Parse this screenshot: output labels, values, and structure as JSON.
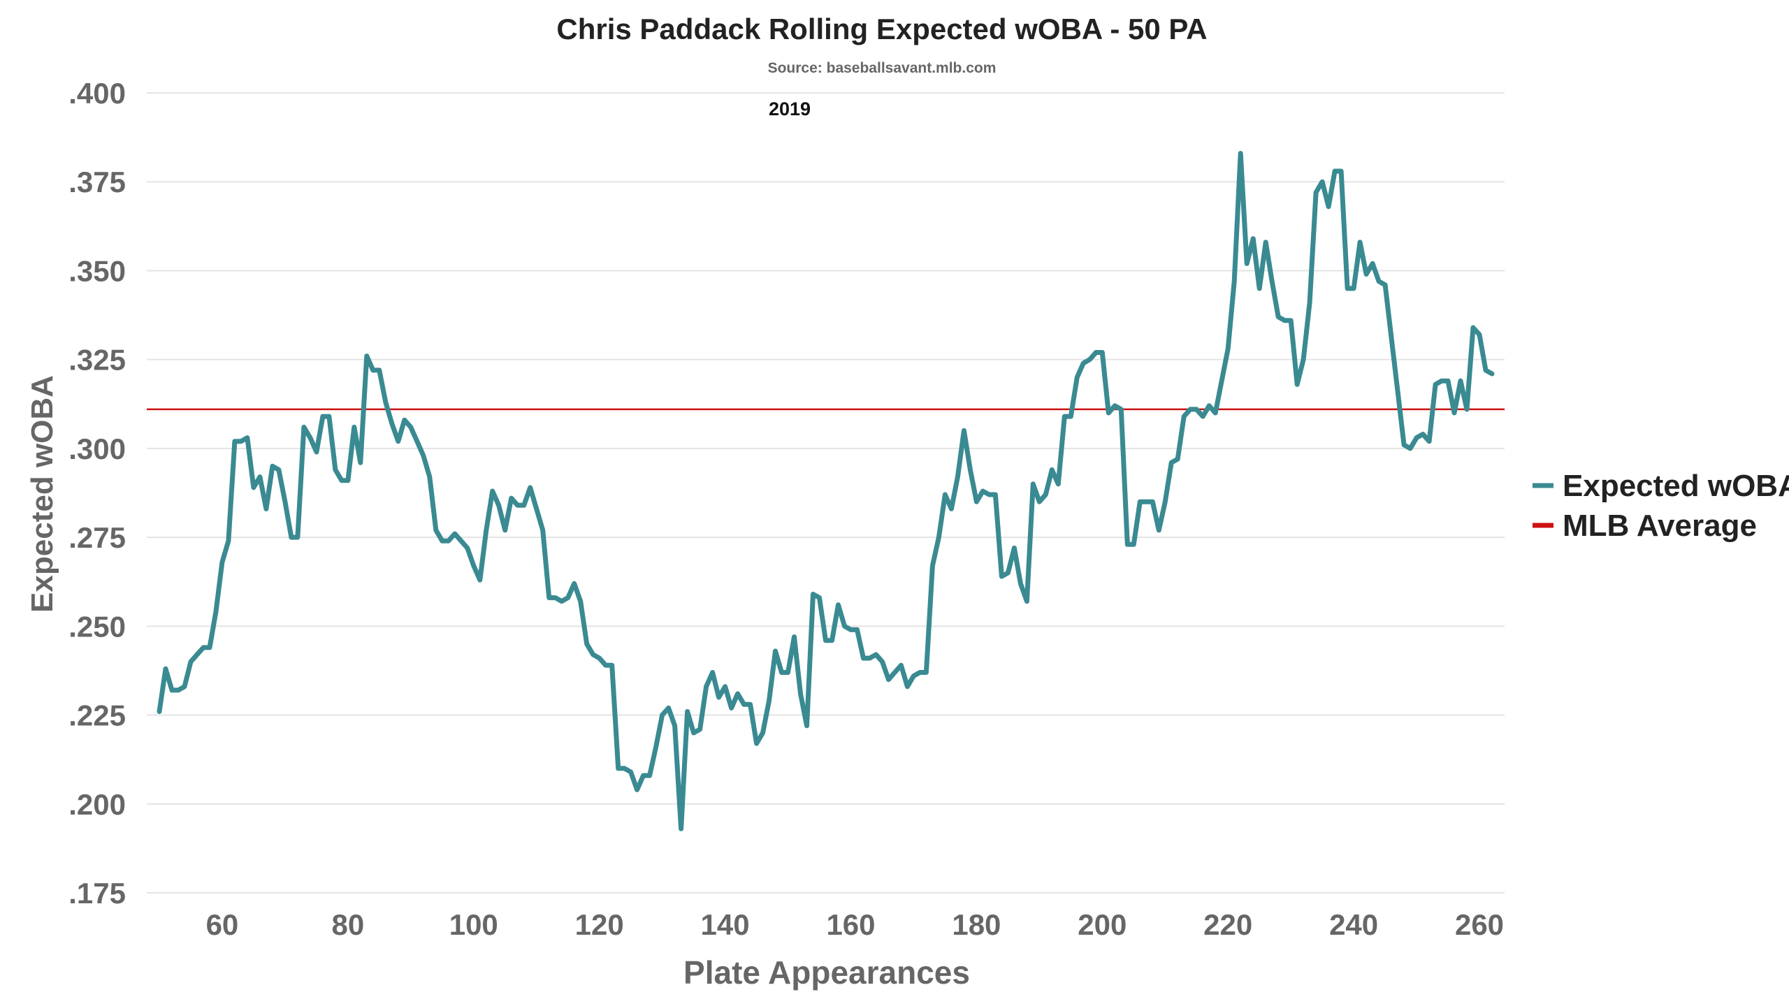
{
  "chart_data": {
    "type": "line",
    "title": "Chris Paddack Rolling Expected wOBA - 50 PA",
    "subtitle": "Source: baseballsavant.mlb.com",
    "annotation": "2019",
    "xlabel": "Plate Appearances",
    "ylabel": "Expected wOBA",
    "xlim": [
      48,
      264
    ],
    "ylim": [
      0.175,
      0.4
    ],
    "x_ticks": [
      60,
      80,
      100,
      120,
      140,
      160,
      180,
      200,
      220,
      240,
      260
    ],
    "x_tick_labels": [
      "60",
      "80",
      "100",
      "120",
      "140",
      "160",
      "180",
      "200",
      "220",
      "240",
      "260"
    ],
    "y_ticks": [
      0.175,
      0.2,
      0.225,
      0.25,
      0.275,
      0.3,
      0.325,
      0.35,
      0.375,
      0.4
    ],
    "y_tick_labels": [
      ".175",
      ".200",
      ".225",
      ".250",
      ".275",
      ".300",
      ".325",
      ".350",
      ".375",
      ".400"
    ],
    "grid": "horizontal",
    "legend_position": "right",
    "colors": {
      "expected_woba": "#3a8a92",
      "mlb_average": "#cc1111",
      "grid": "#e3e3e3"
    },
    "series": [
      {
        "name": "Expected wOBA",
        "x": [
          50,
          51,
          52,
          53,
          54,
          55,
          56,
          57,
          58,
          59,
          60,
          61,
          62,
          63,
          64,
          65,
          66,
          67,
          68,
          69,
          70,
          71,
          72,
          73,
          74,
          75,
          76,
          77,
          78,
          79,
          80,
          81,
          82,
          83,
          84,
          85,
          86,
          87,
          88,
          89,
          90,
          91,
          92,
          93,
          94,
          95,
          96,
          97,
          98,
          99,
          100,
          101,
          102,
          103,
          104,
          105,
          106,
          107,
          108,
          109,
          110,
          111,
          112,
          113,
          114,
          115,
          116,
          117,
          118,
          119,
          120,
          121,
          122,
          123,
          124,
          125,
          126,
          127,
          128,
          129,
          130,
          131,
          132,
          133,
          134,
          135,
          136,
          137,
          138,
          139,
          140,
          141,
          142,
          143,
          144,
          145,
          146,
          147,
          148,
          149,
          150,
          151,
          152,
          153,
          154,
          155,
          156,
          157,
          158,
          159,
          160,
          161,
          162,
          163,
          164,
          165,
          166,
          167,
          168,
          169,
          170,
          171,
          172,
          173,
          174,
          175,
          176,
          177,
          178,
          179,
          180,
          181,
          182,
          183,
          184,
          185,
          186,
          187,
          188,
          189,
          190,
          191,
          192,
          193,
          194,
          195,
          196,
          197,
          198,
          199,
          200,
          201,
          202,
          203,
          204,
          205,
          206,
          207,
          208,
          209,
          210,
          211,
          212,
          213,
          214,
          215,
          216,
          217,
          218,
          219,
          220,
          221,
          222,
          223,
          224,
          225,
          226,
          227,
          228,
          229,
          230,
          231,
          232,
          233,
          234,
          235,
          236,
          237,
          238,
          239,
          240,
          241,
          242,
          243,
          244,
          245,
          246,
          247,
          248,
          249,
          250,
          251,
          252,
          253,
          254,
          255,
          256,
          257,
          258,
          259,
          260,
          261,
          262
        ],
        "values": [
          0.226,
          0.238,
          0.232,
          0.232,
          0.233,
          0.24,
          0.242,
          0.244,
          0.244,
          0.254,
          0.268,
          0.274,
          0.302,
          0.302,
          0.303,
          0.289,
          0.292,
          0.283,
          0.295,
          0.294,
          0.285,
          0.275,
          0.275,
          0.306,
          0.303,
          0.299,
          0.309,
          0.309,
          0.294,
          0.291,
          0.291,
          0.306,
          0.296,
          0.326,
          0.322,
          0.322,
          0.313,
          0.307,
          0.302,
          0.308,
          0.306,
          0.302,
          0.298,
          0.292,
          0.277,
          0.274,
          0.274,
          0.276,
          0.274,
          0.272,
          0.267,
          0.263,
          0.277,
          0.288,
          0.284,
          0.277,
          0.286,
          0.284,
          0.284,
          0.289,
          0.283,
          0.277,
          0.258,
          0.258,
          0.257,
          0.258,
          0.262,
          0.257,
          0.245,
          0.242,
          0.241,
          0.239,
          0.239,
          0.21,
          0.21,
          0.209,
          0.204,
          0.208,
          0.208,
          0.216,
          0.225,
          0.227,
          0.222,
          0.193,
          0.226,
          0.22,
          0.221,
          0.233,
          0.237,
          0.23,
          0.233,
          0.227,
          0.231,
          0.228,
          0.228,
          0.217,
          0.22,
          0.229,
          0.243,
          0.237,
          0.237,
          0.247,
          0.231,
          0.222,
          0.259,
          0.258,
          0.246,
          0.246,
          0.256,
          0.25,
          0.249,
          0.249,
          0.241,
          0.241,
          0.242,
          0.24,
          0.235,
          0.237,
          0.239,
          0.233,
          0.236,
          0.237,
          0.237,
          0.267,
          0.275,
          0.287,
          0.283,
          0.292,
          0.305,
          0.294,
          0.285,
          0.288,
          0.287,
          0.287,
          0.264,
          0.265,
          0.272,
          0.262,
          0.257,
          0.29,
          0.285,
          0.287,
          0.294,
          0.29,
          0.309,
          0.309,
          0.32,
          0.324,
          0.325,
          0.327,
          0.327,
          0.31,
          0.312,
          0.311,
          0.273,
          0.273,
          0.285,
          0.285,
          0.285,
          0.277,
          0.285,
          0.296,
          0.297,
          0.309,
          0.311,
          0.311,
          0.309,
          0.312,
          0.31,
          0.319,
          0.328,
          0.347,
          0.383,
          0.352,
          0.359,
          0.345,
          0.358,
          0.347,
          0.337,
          0.336,
          0.336,
          0.318,
          0.325,
          0.341,
          0.372,
          0.375,
          0.368,
          0.378,
          0.378,
          0.345,
          0.345,
          0.358,
          0.349,
          0.352,
          0.347,
          0.346,
          0.331,
          0.316,
          0.301,
          0.3,
          0.303,
          0.304,
          0.302,
          0.318,
          0.319,
          0.319,
          0.31,
          0.319,
          0.311,
          0.334,
          0.332,
          0.322,
          0.321
        ]
      },
      {
        "name": "MLB Average",
        "constant": 0.311
      }
    ]
  }
}
